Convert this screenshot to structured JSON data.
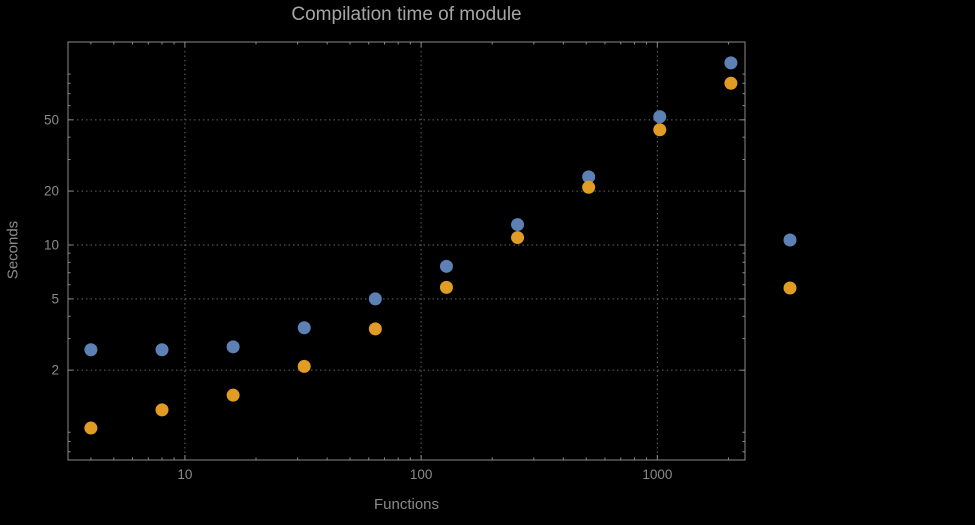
{
  "chart": {
    "title": "Compilation time of module",
    "xlabel": "Functions",
    "ylabel": "Seconds"
  },
  "chart_data": {
    "type": "scatter",
    "x_scale": "log",
    "y_scale": "log",
    "x": [
      4,
      8,
      16,
      32,
      64,
      128,
      256,
      512,
      1024,
      2048
    ],
    "series": [
      {
        "name": "series-1-blue",
        "color": "#5e81b5",
        "values": [
          2.6,
          2.6,
          2.7,
          3.45,
          5.0,
          7.6,
          13,
          24,
          52,
          104
        ]
      },
      {
        "name": "series-2-orange",
        "color": "#e19c24",
        "values": [
          0.95,
          1.2,
          1.45,
          2.1,
          3.4,
          5.8,
          11,
          21,
          44,
          80
        ]
      }
    ],
    "xlim": [
      3.2,
      2350
    ],
    "ylim": [
      0.63,
      136
    ],
    "x_ticks": [
      10,
      100,
      1000
    ],
    "y_ticks": [
      2,
      5,
      10,
      20,
      50
    ],
    "grid": "dotted",
    "frame_color": "#8a8a8a",
    "grid_color": "#636363",
    "tick_label_color": "#8a8a8a",
    "legend_markers": [
      {
        "series": "series-1-blue",
        "color": "#5e81b5"
      },
      {
        "series": "series-2-orange",
        "color": "#e19c24"
      }
    ]
  }
}
